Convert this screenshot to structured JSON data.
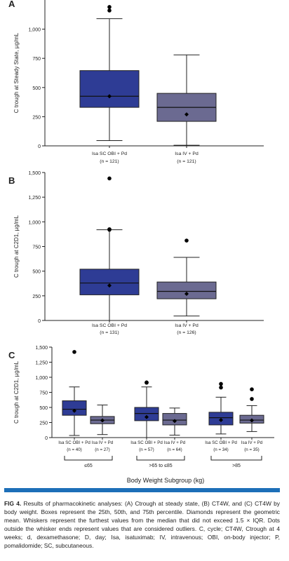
{
  "colors": {
    "sc_box": "#2e3c95",
    "iv_box": "#6b6a91",
    "axis": "#222222",
    "accent_bar": "#1d6fb8"
  },
  "chart_data": [
    {
      "type": "box",
      "panel_label": "A",
      "ylabel": "C trough at Steady State, µg/mL",
      "ylim": [
        0,
        1250
      ],
      "yticks": [
        0,
        250,
        500,
        750,
        1000
      ],
      "yticklabels": [
        "0",
        "250",
        "500",
        "750",
        "1,000"
      ],
      "groups": [
        {
          "label": "Isa SC OBI + Pd",
          "n": "(n = 121)",
          "color": "sc",
          "whisker_low": 45,
          "q1": 330,
          "median": 425,
          "q3": 645,
          "whisker_high": 1090,
          "mean": 425,
          "outliers": [
            1160,
            1190
          ]
        },
        {
          "label": "Isa IV + Pd",
          "n": "(n = 121)",
          "color": "iv",
          "whisker_low": 5,
          "q1": 210,
          "median": 330,
          "q3": 450,
          "whisker_high": 780,
          "mean": 270,
          "outliers": []
        }
      ]
    },
    {
      "type": "box",
      "panel_label": "B",
      "ylabel": "C trough at C2D1, µg/mL",
      "ylim": [
        0,
        1500
      ],
      "yticks": [
        0,
        250,
        500,
        750,
        1000,
        1250,
        1500
      ],
      "yticklabels": [
        "0",
        "250",
        "500",
        "750",
        "1,000",
        "1,250",
        "1,500"
      ],
      "groups": [
        {
          "label": "Isa SC OBI + Pd",
          "n": "(n = 131)",
          "color": "sc",
          "whisker_low": 0,
          "q1": 260,
          "median": 380,
          "q3": 520,
          "whisker_high": 920,
          "mean": 355,
          "outliers": [
            920,
            925,
            1440
          ]
        },
        {
          "label": "Isa IV + Pd",
          "n": "(n = 126)",
          "color": "iv",
          "whisker_low": 45,
          "q1": 220,
          "median": 295,
          "q3": 390,
          "whisker_high": 640,
          "mean": 270,
          "outliers": [
            810
          ]
        }
      ]
    },
    {
      "type": "box",
      "panel_label": "C",
      "ylabel": "C trough at C2D1, µg/mL",
      "xlabel": "Body Weight Subgroup (kg)",
      "ylim": [
        0,
        1500
      ],
      "yticks": [
        0,
        250,
        500,
        750,
        1000,
        1250,
        1500
      ],
      "yticklabels": [
        "0",
        "250",
        "500",
        "750",
        "1,000",
        "1,250",
        "1,500"
      ],
      "subgroups": [
        {
          "label": "≤65"
        },
        {
          "label": ">65 to ≤85"
        },
        {
          "label": ">85"
        }
      ],
      "groups": [
        {
          "label": "Isa SC OBI + Pd",
          "n": "(n = 40)",
          "color": "sc",
          "subgroup": 0,
          "whisker_low": 35,
          "q1": 370,
          "median": 470,
          "q3": 610,
          "whisker_high": 840,
          "mean": 445,
          "outliers": [
            1420
          ]
        },
        {
          "label": "Isa IV + Pd",
          "n": "(n = 27)",
          "color": "iv",
          "subgroup": 0,
          "whisker_low": 50,
          "q1": 230,
          "median": 290,
          "q3": 350,
          "whisker_high": 540,
          "mean": 285,
          "outliers": []
        },
        {
          "label": "Isa SC OBI + Pd",
          "n": "(n = 57)",
          "color": "sc",
          "subgroup": 1,
          "whisker_low": 0,
          "q1": 280,
          "median": 400,
          "q3": 500,
          "whisker_high": 840,
          "mean": 340,
          "outliers": [
            910,
            915
          ]
        },
        {
          "label": "Isa IV + Pd",
          "n": "(n = 64)",
          "color": "iv",
          "subgroup": 1,
          "whisker_low": 40,
          "q1": 210,
          "median": 290,
          "q3": 400,
          "whisker_high": 490,
          "mean": 275,
          "outliers": []
        },
        {
          "label": "Isa SC OBI + Pd",
          "n": "(n = 34)",
          "color": "sc",
          "subgroup": 2,
          "whisker_low": 60,
          "q1": 210,
          "median": 330,
          "q3": 420,
          "whisker_high": 670,
          "mean": 290,
          "outliers": [
            830,
            890
          ]
        },
        {
          "label": "Isa IV + Pd",
          "n": "(n = 35)",
          "color": "iv",
          "subgroup": 2,
          "whisker_low": 100,
          "q1": 240,
          "median": 290,
          "q3": 370,
          "whisker_high": 530,
          "mean": 285,
          "outliers": [
            640,
            800
          ]
        }
      ]
    }
  ],
  "caption": {
    "label": "FIG 4.",
    "text": "Results of pharmacokinetic analyses: (A) Ctrough at steady state, (B) CT4W, and (C) CT4W by body weight. Boxes represent the 25th, 50th, and 75th percentile. Diamonds represent the geometric mean. Whiskers represent the furthest values from the median that did not exceed 1.5 × IQR. Dots outside the whisker ends represent values that are considered outliers. C, cycle; CT4W, Ctrough at 4 weeks; d, dexamethasone; D, day; Isa, isatuximab; IV, intravenous; OBI, on-body injector; P, pomalidomide; SC, subcutaneous."
  }
}
